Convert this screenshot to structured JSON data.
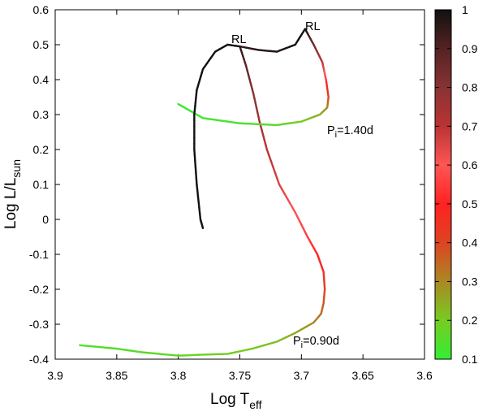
{
  "chart_data": {
    "type": "line",
    "xlabel_main": "Log T",
    "xlabel_sub": "eff",
    "ylabel_main": "Log L/L",
    "ylabel_sub": "sun",
    "xlim": [
      3.9,
      3.6
    ],
    "ylim": [
      -0.4,
      0.6
    ],
    "x_ticks": [
      3.9,
      3.85,
      3.8,
      3.75,
      3.7,
      3.65,
      3.6
    ],
    "x_tick_labels": [
      "3.9",
      "3.85",
      "3.8",
      "3.75",
      "3.7",
      "3.65",
      "3.6"
    ],
    "y_ticks": [
      0.6,
      0.5,
      0.4,
      0.3,
      0.2,
      0.1,
      0,
      -0.1,
      -0.2,
      -0.3,
      -0.4
    ],
    "y_tick_labels": [
      "0.6",
      "0.5",
      "0.4",
      "0.3",
      "0.2",
      "0.1",
      "0",
      "-0.1",
      "-0.2",
      "-0.3",
      "-0.4"
    ],
    "colorbar": {
      "min": 0.1,
      "max": 1.0,
      "ticks": [
        1,
        0.9,
        0.8,
        0.7,
        0.6,
        0.5,
        0.4,
        0.3,
        0.2,
        0.1
      ],
      "tick_labels": [
        "1",
        "0.9",
        "0.8",
        "0.7",
        "0.6",
        "0.5",
        "0.4",
        "0.3",
        "0.2",
        "0.1"
      ],
      "stops": [
        {
          "value": 0.1,
          "color": "#33ee33"
        },
        {
          "value": 0.2,
          "color": "#77cc22"
        },
        {
          "value": 0.3,
          "color": "#aa8822"
        },
        {
          "value": 0.4,
          "color": "#dd4422"
        },
        {
          "value": 0.5,
          "color": "#ff2222"
        },
        {
          "value": 0.6,
          "color": "#ff5555"
        },
        {
          "value": 0.7,
          "color": "#bb3333"
        },
        {
          "value": 0.8,
          "color": "#883333"
        },
        {
          "value": 0.9,
          "color": "#552222"
        },
        {
          "value": 1.0,
          "color": "#111111"
        }
      ]
    },
    "series": [
      {
        "name": "Pi=0.90d",
        "points": [
          {
            "x": 3.88,
            "y": -0.36,
            "c": 0.14
          },
          {
            "x": 3.85,
            "y": -0.37,
            "c": 0.15
          },
          {
            "x": 3.83,
            "y": -0.38,
            "c": 0.16
          },
          {
            "x": 3.8,
            "y": -0.39,
            "c": 0.17
          },
          {
            "x": 3.78,
            "y": -0.387,
            "c": 0.18
          },
          {
            "x": 3.76,
            "y": -0.385,
            "c": 0.19
          },
          {
            "x": 3.74,
            "y": -0.37,
            "c": 0.2
          },
          {
            "x": 3.72,
            "y": -0.35,
            "c": 0.22
          },
          {
            "x": 3.705,
            "y": -0.325,
            "c": 0.25
          },
          {
            "x": 3.69,
            "y": -0.295,
            "c": 0.3
          },
          {
            "x": 3.684,
            "y": -0.27,
            "c": 0.34
          },
          {
            "x": 3.682,
            "y": -0.24,
            "c": 0.37
          },
          {
            "x": 3.681,
            "y": -0.2,
            "c": 0.4
          },
          {
            "x": 3.682,
            "y": -0.15,
            "c": 0.45
          },
          {
            "x": 3.687,
            "y": -0.1,
            "c": 0.5
          },
          {
            "x": 3.695,
            "y": -0.05,
            "c": 0.55
          },
          {
            "x": 3.705,
            "y": 0.02,
            "c": 0.6
          },
          {
            "x": 3.718,
            "y": 0.1,
            "c": 0.65
          },
          {
            "x": 3.728,
            "y": 0.2,
            "c": 0.7
          },
          {
            "x": 3.734,
            "y": 0.28,
            "c": 0.75
          },
          {
            "x": 3.739,
            "y": 0.36,
            "c": 0.8
          },
          {
            "x": 3.745,
            "y": 0.44,
            "c": 0.88
          },
          {
            "x": 3.75,
            "y": 0.495,
            "c": 0.95
          },
          {
            "x": 3.735,
            "y": 0.485,
            "c": 0.97
          },
          {
            "x": 3.72,
            "y": 0.48,
            "c": 0.98
          },
          {
            "x": 3.705,
            "y": 0.5,
            "c": 0.99
          },
          {
            "x": 3.697,
            "y": 0.545,
            "c": 1.0
          },
          {
            "x": 3.69,
            "y": 0.5,
            "c": 0.85
          },
          {
            "x": 3.683,
            "y": 0.45,
            "c": 0.7
          },
          {
            "x": 3.68,
            "y": 0.4,
            "c": 0.55
          },
          {
            "x": 3.678,
            "y": 0.35,
            "c": 0.4
          },
          {
            "x": 3.679,
            "y": 0.32,
            "c": 0.3
          },
          {
            "x": 3.685,
            "y": 0.3,
            "c": 0.25
          },
          {
            "x": 3.7,
            "y": 0.28,
            "c": 0.2
          },
          {
            "x": 3.72,
            "y": 0.27,
            "c": 0.16
          },
          {
            "x": 3.75,
            "y": 0.275,
            "c": 0.13
          },
          {
            "x": 3.78,
            "y": 0.29,
            "c": 0.12
          },
          {
            "x": 3.8,
            "y": 0.33,
            "c": 0.11
          }
        ]
      },
      {
        "name": "Pi=1.40d",
        "points": [
          {
            "x": 3.78,
            "y": -0.025,
            "c": 1.0
          },
          {
            "x": 3.782,
            "y": 0.0,
            "c": 1.0
          },
          {
            "x": 3.785,
            "y": 0.1,
            "c": 1.0
          },
          {
            "x": 3.787,
            "y": 0.2,
            "c": 1.0
          },
          {
            "x": 3.787,
            "y": 0.3,
            "c": 1.0
          },
          {
            "x": 3.785,
            "y": 0.37,
            "c": 1.0
          },
          {
            "x": 3.78,
            "y": 0.43,
            "c": 1.0
          },
          {
            "x": 3.77,
            "y": 0.48,
            "c": 1.0
          },
          {
            "x": 3.76,
            "y": 0.5,
            "c": 1.0
          },
          {
            "x": 3.75,
            "y": 0.495,
            "c": 1.0
          }
        ]
      }
    ],
    "annotations": [
      {
        "text": "RL",
        "x": 3.753,
        "y": 0.51
      },
      {
        "text": "RL",
        "x": 3.69,
        "y": 0.555
      },
      {
        "text_main": "P",
        "text_sub": "i",
        "text_rest": "=1.40d",
        "x": 3.69,
        "y": 0.19
      },
      {
        "text_main": "P",
        "text_sub": "i",
        "text_rest": "=0.90d",
        "x": 3.71,
        "y": -0.34
      }
    ]
  }
}
